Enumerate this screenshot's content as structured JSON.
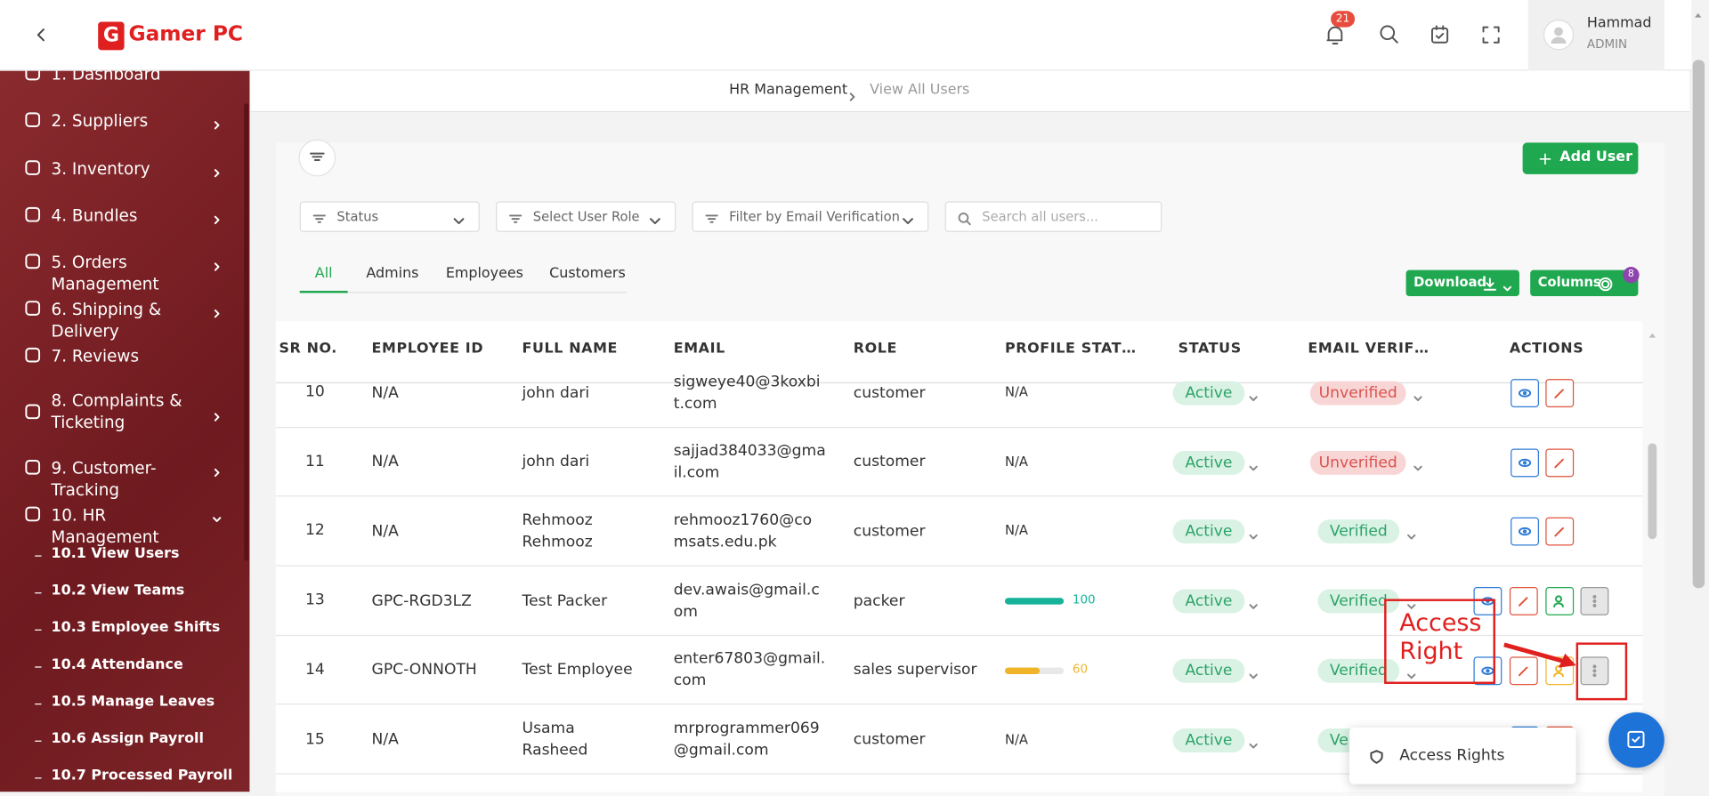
{
  "header": {
    "brand": "Gamer PC",
    "notifications": 21,
    "user_name": "Hammad",
    "user_role": "ADMIN"
  },
  "sidebar": {
    "items": [
      "1. Dashboard",
      "2. Suppliers",
      "3. Inventory",
      "4. Bundles",
      "5. Orders Management",
      "6. Shipping & Delivery",
      "7. Reviews",
      "8. Complaints & Ticketing",
      "9. Customer-Tracking",
      "10. HR Management"
    ],
    "subitems": [
      "10.1 View Users",
      "10.2 View Teams",
      "10.3 Employee Shifts",
      "10.4 Attendance",
      "10.5 Manage Leaves",
      "10.6 Assign Payroll",
      "10.7 Processed Payroll"
    ]
  },
  "breadcrumb": [
    "HR Management",
    "View All Users"
  ],
  "toolbar": {
    "add_button": "Add User",
    "filters": [
      "Status",
      "Select User Role",
      "Filter by Email Verification"
    ],
    "search_placeholder": "Search all users...",
    "tabs": [
      "All",
      "Admins",
      "Employees",
      "Customers"
    ],
    "download_button": "Download",
    "columns_button": "Columns",
    "columns_count": 8
  },
  "table": {
    "columns": [
      "SR NO.",
      "EMPLOYEE ID",
      "FULL NAME",
      "EMAIL",
      "ROLE",
      "PROFILE STAT…",
      "STATUS",
      "EMAIL VERIF…",
      "ACTIONS"
    ],
    "rows": [
      {
        "sr": 10,
        "employee_id": "N/A",
        "full_name": "john dari",
        "email": "sigweye40@3koxbit.com",
        "role": "customer",
        "profile": "N/A",
        "status": "Active",
        "email_verification": "Unverified"
      },
      {
        "sr": 11,
        "employee_id": "N/A",
        "full_name": "john dari",
        "email": "sajjad384033@gmail.com",
        "role": "customer",
        "profile": "N/A",
        "status": "Active",
        "email_verification": "Unverified"
      },
      {
        "sr": 12,
        "employee_id": "N/A",
        "full_name": "Rehmooz Rehmooz",
        "email": "rehmooz1760@comsats.edu.pk",
        "role": "customer",
        "profile": "N/A",
        "status": "Active",
        "email_verification": "Verified"
      },
      {
        "sr": 13,
        "employee_id": "GPC-RGD3LZ",
        "full_name": "Test Packer",
        "email": "dev.awais@gmail.com",
        "role": "packer",
        "profile": 100,
        "status": "Active",
        "email_verification": "Verified"
      },
      {
        "sr": 14,
        "employee_id": "GPC-ONNOTH",
        "full_name": "Test Employee",
        "email": "enter67803@gmail.com",
        "role": "sales supervisor",
        "profile": 60,
        "status": "Active",
        "email_verification": "Verified"
      },
      {
        "sr": 15,
        "employee_id": "N/A",
        "full_name": "Usama Rasheed",
        "email": "mrprogrammer069@gmail.com",
        "role": "customer",
        "profile": "N/A",
        "status": "Active",
        "email_verification": "Verified"
      }
    ]
  },
  "annotation": {
    "label": "Access Right"
  },
  "menu": {
    "items": [
      "Access Rights"
    ]
  }
}
